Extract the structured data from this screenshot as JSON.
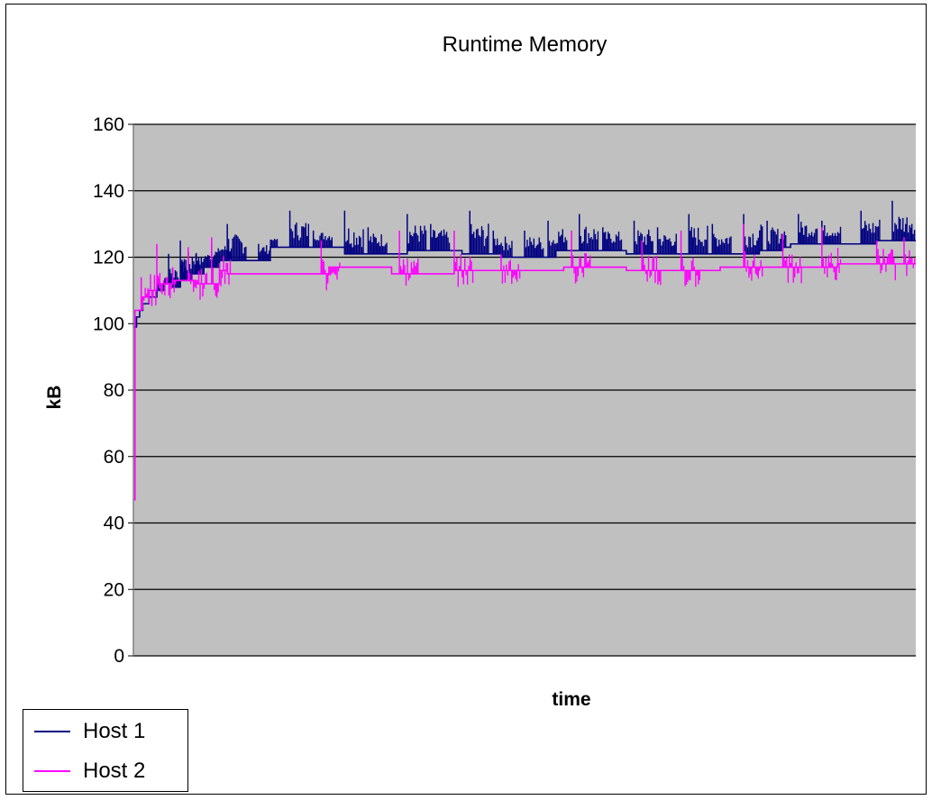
{
  "chart_data": {
    "type": "line",
    "title": "Runtime Memory",
    "xlabel": "time",
    "ylabel": "kB",
    "ylim": [
      0,
      160
    ],
    "yticks": [
      0,
      20,
      40,
      60,
      80,
      100,
      120,
      140,
      160
    ],
    "grid": true,
    "plot_background": "#c0c0c0",
    "legend_position": "bottom-left",
    "x_unit": "fraction of time span",
    "series": [
      {
        "name": "Host 1",
        "color": "#000080",
        "baseline": [
          [
            0.0,
            99
          ],
          [
            0.004,
            102
          ],
          [
            0.008,
            104
          ],
          [
            0.012,
            106
          ],
          [
            0.02,
            108
          ],
          [
            0.03,
            110
          ],
          [
            0.04,
            112
          ],
          [
            0.05,
            111
          ],
          [
            0.06,
            113
          ],
          [
            0.075,
            115
          ],
          [
            0.09,
            117
          ],
          [
            0.11,
            119
          ],
          [
            0.17,
            119
          ],
          [
            0.175,
            123
          ],
          [
            0.26,
            123
          ],
          [
            0.27,
            121
          ],
          [
            0.34,
            121
          ],
          [
            0.35,
            122
          ],
          [
            0.41,
            122
          ],
          [
            0.42,
            121
          ],
          [
            0.46,
            121
          ],
          [
            0.47,
            120
          ],
          [
            0.53,
            120
          ],
          [
            0.54,
            122
          ],
          [
            0.62,
            122
          ],
          [
            0.63,
            121
          ],
          [
            0.67,
            121
          ],
          [
            0.68,
            121
          ],
          [
            0.76,
            121
          ],
          [
            0.8,
            122
          ],
          [
            0.83,
            123
          ],
          [
            0.84,
            124
          ],
          [
            0.9,
            124
          ],
          [
            0.92,
            124
          ],
          [
            0.95,
            125
          ],
          [
            1.0,
            125
          ]
        ],
        "spikes": [
          [
            0.03,
            111
          ],
          [
            0.045,
            121
          ],
          [
            0.06,
            125
          ],
          [
            0.08,
            121
          ],
          [
            0.1,
            124
          ],
          [
            0.12,
            130
          ],
          [
            0.16,
            124
          ],
          [
            0.2,
            134
          ],
          [
            0.23,
            128
          ],
          [
            0.27,
            134
          ],
          [
            0.3,
            129
          ],
          [
            0.35,
            133
          ],
          [
            0.38,
            130
          ],
          [
            0.43,
            134
          ],
          [
            0.46,
            128
          ],
          [
            0.5,
            128
          ],
          [
            0.53,
            131
          ],
          [
            0.57,
            133
          ],
          [
            0.6,
            129
          ],
          [
            0.64,
            131
          ],
          [
            0.67,
            129
          ],
          [
            0.71,
            133
          ],
          [
            0.74,
            130
          ],
          [
            0.78,
            133
          ],
          [
            0.81,
            131
          ],
          [
            0.85,
            133
          ],
          [
            0.88,
            131
          ],
          [
            0.93,
            134
          ],
          [
            0.97,
            137
          ],
          [
            0.995,
            130
          ]
        ]
      },
      {
        "name": "Host 2",
        "color": "#ff00ff",
        "start_value": 47,
        "baseline": [
          [
            0.0,
            47
          ],
          [
            0.002,
            104
          ],
          [
            0.01,
            108
          ],
          [
            0.02,
            110
          ],
          [
            0.03,
            112
          ],
          [
            0.05,
            113
          ],
          [
            0.08,
            112
          ],
          [
            0.1,
            112
          ],
          [
            0.11,
            116
          ],
          [
            0.12,
            115
          ],
          [
            0.24,
            115
          ],
          [
            0.25,
            117
          ],
          [
            0.32,
            117
          ],
          [
            0.33,
            115
          ],
          [
            0.4,
            115
          ],
          [
            0.41,
            116
          ],
          [
            0.5,
            116
          ],
          [
            0.55,
            117
          ],
          [
            0.62,
            117
          ],
          [
            0.63,
            116
          ],
          [
            0.7,
            116
          ],
          [
            0.75,
            117
          ],
          [
            0.85,
            117
          ],
          [
            0.9,
            118
          ],
          [
            1.0,
            118
          ]
        ],
        "spikes": [
          [
            0.01,
            114
          ],
          [
            0.03,
            124
          ],
          [
            0.07,
            123
          ],
          [
            0.1,
            126
          ],
          [
            0.24,
            125
          ],
          [
            0.34,
            128
          ],
          [
            0.41,
            128
          ],
          [
            0.47,
            121
          ],
          [
            0.56,
            128
          ],
          [
            0.65,
            125
          ],
          [
            0.7,
            128
          ],
          [
            0.78,
            130
          ],
          [
            0.83,
            127
          ],
          [
            0.88,
            129
          ],
          [
            0.95,
            125
          ],
          [
            0.985,
            126
          ]
        ]
      }
    ]
  }
}
